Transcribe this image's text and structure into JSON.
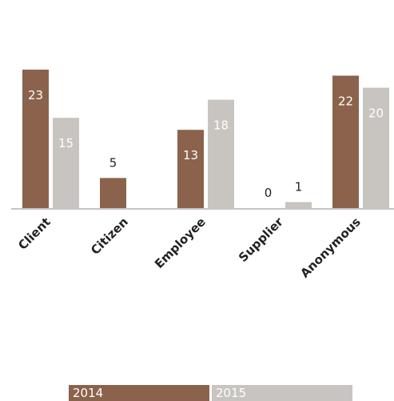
{
  "chart_data": {
    "type": "bar",
    "categories": [
      "Client",
      "Citizen",
      "Employee",
      "Supplier",
      "Anonymous"
    ],
    "series": [
      {
        "name": "2014",
        "color": "#8b624c",
        "values": [
          23,
          5,
          13,
          0,
          22
        ]
      },
      {
        "name": "2015",
        "color": "#c8c4c0",
        "values": [
          15,
          0,
          18,
          1,
          20
        ]
      }
    ],
    "ylim": [
      0,
      23
    ],
    "grid": false,
    "legend_position": "bottom"
  },
  "legend": {
    "items": [
      "2014",
      "2015"
    ]
  }
}
